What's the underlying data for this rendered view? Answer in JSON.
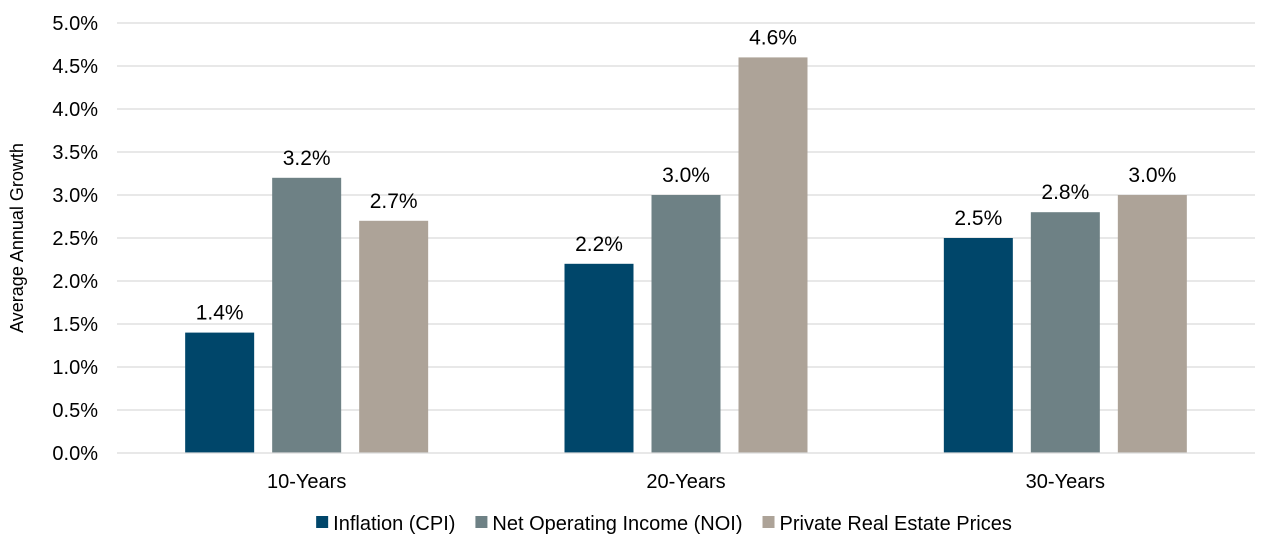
{
  "chart_data": {
    "type": "bar",
    "title": "",
    "xlabel": "",
    "ylabel": "Average Annual Growth",
    "categories": [
      "10-Years",
      "20-Years",
      "30-Years"
    ],
    "series": [
      {
        "name": "Inflation (CPI)",
        "color": "#00466a",
        "values": [
          1.4,
          2.2,
          2.5
        ],
        "labels": [
          "1.4%",
          "2.2%",
          "2.5%"
        ]
      },
      {
        "name": "Net Operating Income (NOI)",
        "color": "#6e8185",
        "values": [
          3.2,
          3.0,
          2.8
        ],
        "labels": [
          "3.2%",
          "3.0%",
          "2.8%"
        ]
      },
      {
        "name": "Private Real Estate Prices",
        "color": "#ada398",
        "values": [
          2.7,
          4.6,
          3.0
        ],
        "labels": [
          "2.7%",
          "4.6%",
          "3.0%"
        ]
      }
    ],
    "ylim": [
      0,
      5.0
    ],
    "yticks": [
      0.0,
      0.5,
      1.0,
      1.5,
      2.0,
      2.5,
      3.0,
      3.5,
      4.0,
      4.5,
      5.0
    ],
    "ytick_labels": [
      "0.0%",
      "0.5%",
      "1.0%",
      "1.5%",
      "2.0%",
      "2.5%",
      "3.0%",
      "3.5%",
      "4.0%",
      "4.5%",
      "5.0%"
    ],
    "grid": true,
    "gridline_color": "#d9d9d9",
    "legend_position": "bottom"
  }
}
